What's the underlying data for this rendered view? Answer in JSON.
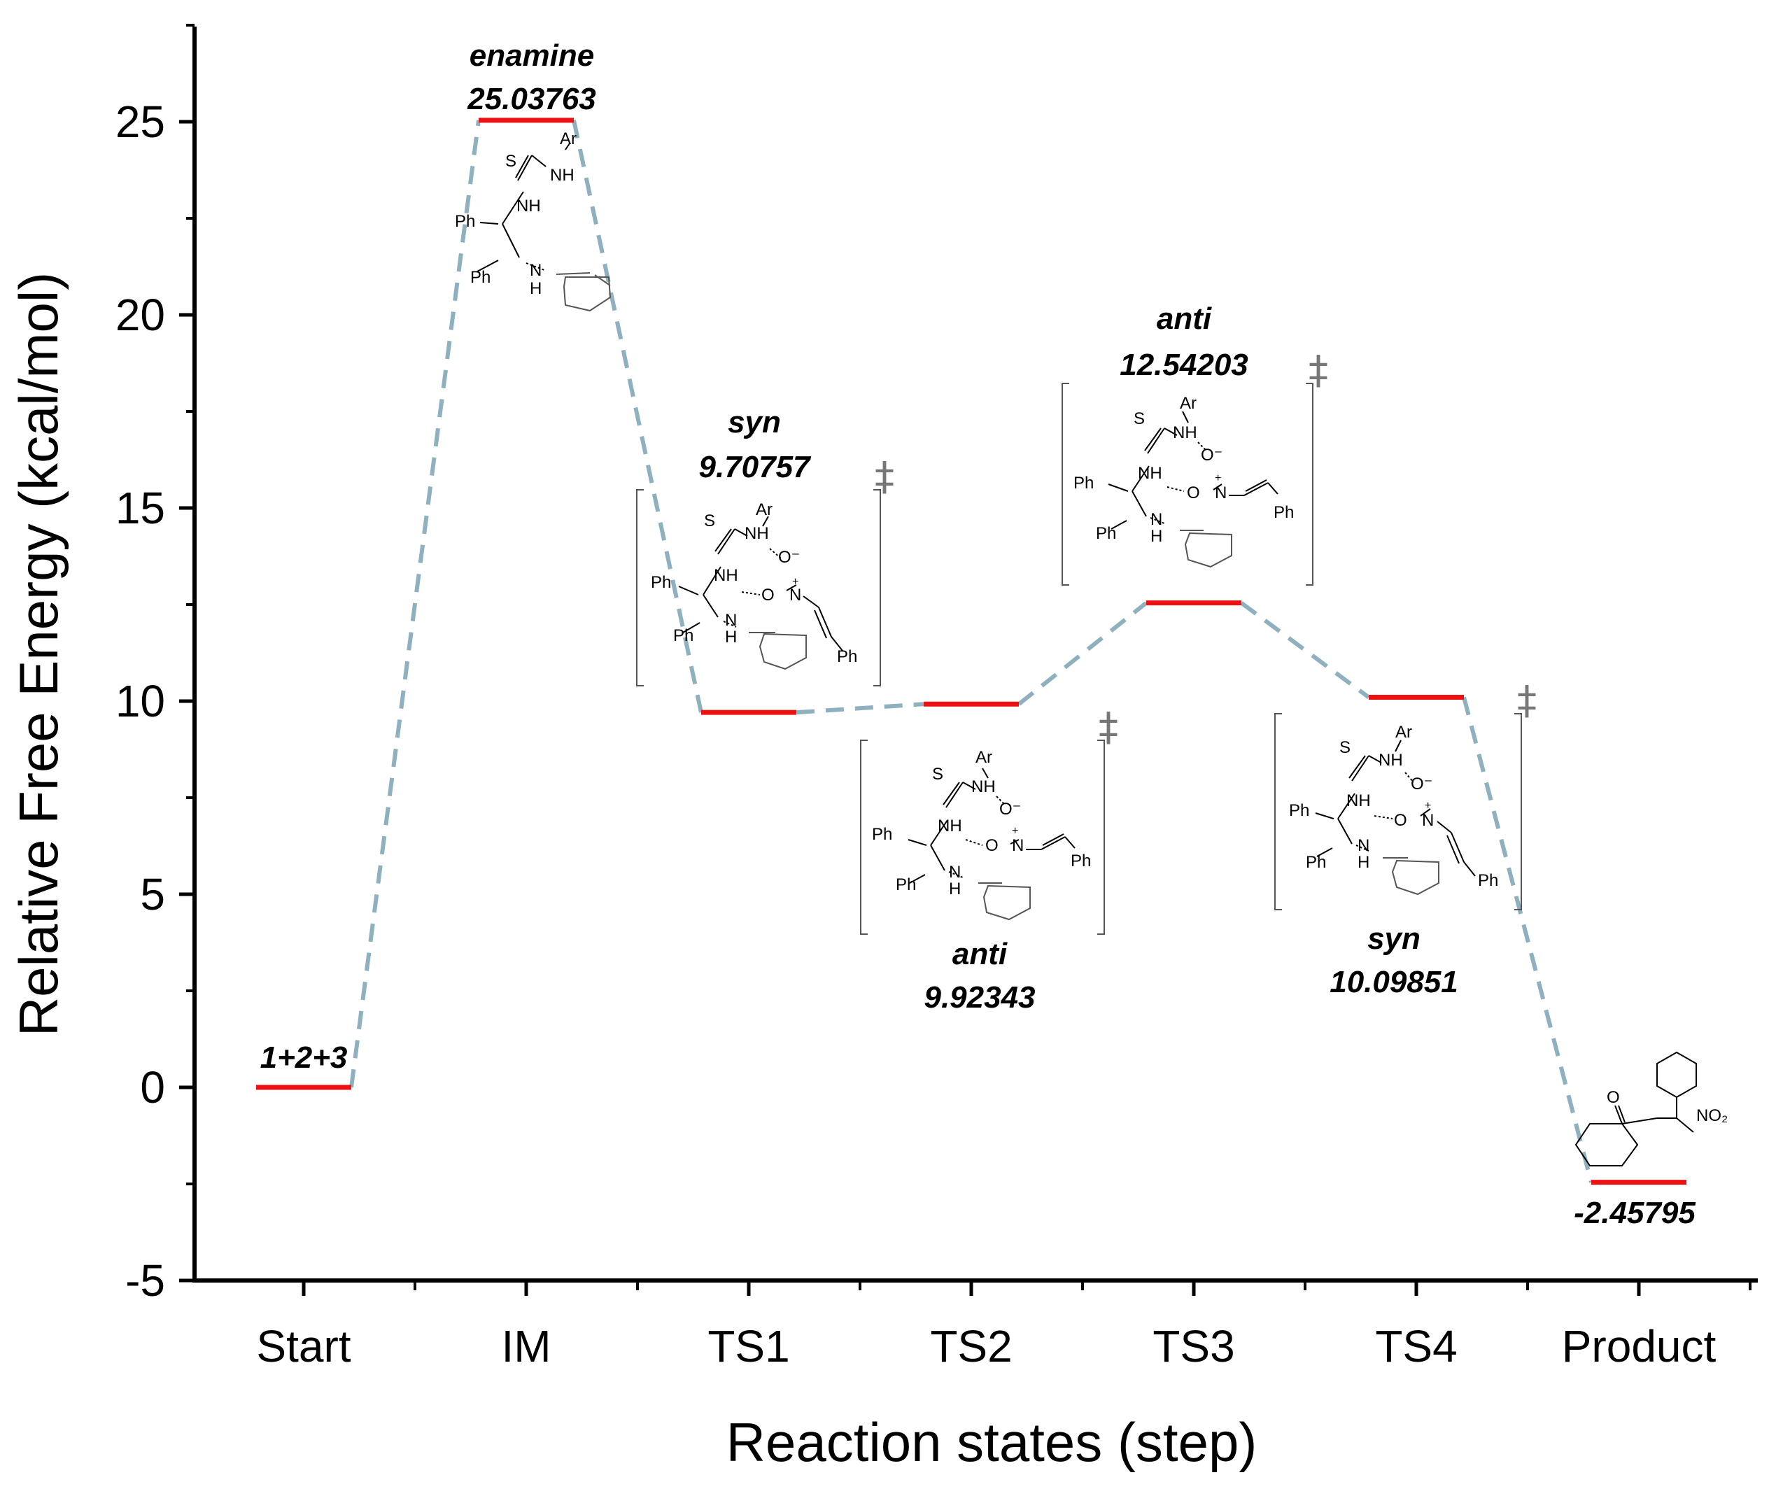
{
  "chart_data": {
    "type": "line",
    "title": "",
    "xlabel": "Reaction states (step)",
    "ylabel": "Relative Free Energy (kcal/mol)",
    "ylim": [
      -5,
      27.5
    ],
    "yticks": [
      -5,
      0,
      5,
      10,
      15,
      20,
      25
    ],
    "ytick_labels": [
      "-5",
      "0",
      "5",
      "10",
      "15",
      "20",
      "25"
    ],
    "categories": [
      "Start",
      "IM",
      "TS1",
      "TS2",
      "TS3",
      "TS4",
      "Product"
    ],
    "values": [
      0,
      25.03763,
      9.70757,
      9.92343,
      12.54203,
      10.09851,
      -2.45795
    ],
    "annotations": [
      {
        "state": "Start",
        "label": "",
        "value_text": "1+2+3"
      },
      {
        "state": "IM",
        "label": "enamine",
        "value_text": "25.03763"
      },
      {
        "state": "TS1",
        "label": "syn",
        "value_text": "9.70757"
      },
      {
        "state": "TS2",
        "label": "anti",
        "value_text": "9.92343"
      },
      {
        "state": "TS3",
        "label": "anti",
        "value_text": "12.54203"
      },
      {
        "state": "TS4",
        "label": "syn",
        "value_text": "10.09851"
      },
      {
        "state": "Product",
        "label": "",
        "value_text": "-2.45795"
      }
    ],
    "level_color": "#ee1111",
    "connector_color": "#8fb1bf",
    "grid": false
  },
  "structure_text": {
    "ph": "Ph",
    "nh": "NH",
    "n": "N",
    "h": "H",
    "s": "S",
    "ar": "Ar",
    "o_minus": "O⁻",
    "o": "O",
    "n_plus": "N",
    "plus": "+",
    "dagger": "‡",
    "no2": "NO₂",
    "o_ketone": "O"
  }
}
